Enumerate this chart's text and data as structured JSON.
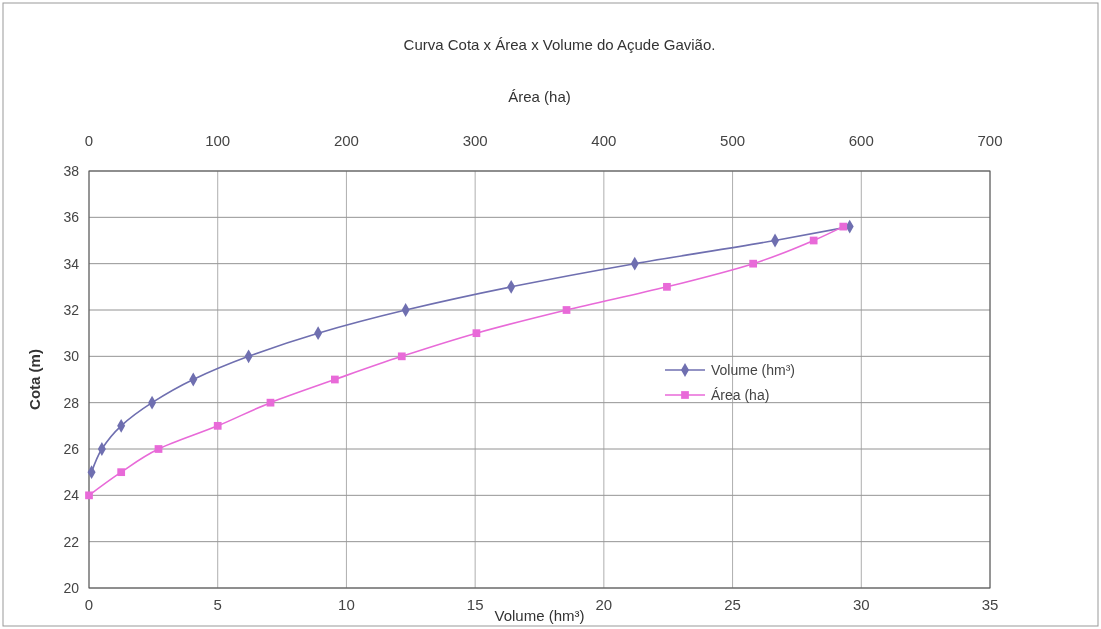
{
  "chart_data": {
    "type": "line",
    "title": "Curva Cota x Área x Volume do Açude Gavião.",
    "xlabel": "Volume (hm³)",
    "x2label": "Área (ha)",
    "ylabel": "Cota (m)",
    "xlim": [
      0,
      35
    ],
    "xticks": [
      0,
      5,
      10,
      15,
      20,
      25,
      30,
      35
    ],
    "x2lim": [
      0,
      700
    ],
    "x2ticks": [
      0,
      100,
      200,
      300,
      400,
      500,
      600,
      700
    ],
    "ylim": [
      20,
      38
    ],
    "yticks": [
      20,
      22,
      24,
      26,
      28,
      30,
      32,
      34,
      36,
      38
    ],
    "grid": true,
    "legend": "right",
    "series": [
      {
        "name": "Volume (hm³)",
        "color": "#6f6fb0",
        "marker": "diamond",
        "x": [
          0.1,
          0.5,
          1.25,
          2.45,
          4.05,
          6.2,
          8.9,
          12.3,
          16.4,
          21.2,
          26.65,
          29.55
        ],
        "values": [
          25,
          26,
          27,
          28,
          29,
          30,
          31,
          32,
          33,
          34,
          35,
          35.6
        ]
      },
      {
        "name": "Área (ha)",
        "color": "#e86ad8",
        "marker": "square",
        "axis": "x2",
        "x": [
          0,
          25,
          54,
          100,
          141,
          191,
          243,
          301,
          371,
          449,
          516,
          563,
          586
        ],
        "values": [
          24,
          25,
          26,
          27,
          28,
          29,
          30,
          31,
          32,
          33,
          34,
          35,
          35.6
        ]
      }
    ]
  }
}
